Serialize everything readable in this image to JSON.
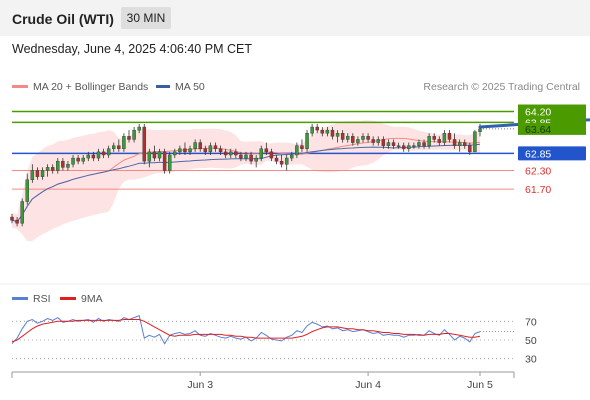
{
  "header": {
    "instrument": "Crude Oil (WTI)",
    "timeframe": "30 MIN",
    "datetime": "Wednesday, June 4, 2025 4:06:40 PM CET"
  },
  "legend": [
    {
      "label": "MA 20 + Bollinger Bands",
      "color": "#f28b82"
    },
    {
      "label": "MA 50",
      "color": "#3a5fa0"
    }
  ],
  "credit": "Research © 2025 Trading Central",
  "colors": {
    "up": "#3a9a3a",
    "down": "#b03030",
    "band_fill": "#fde0e0",
    "ma20": "#f28b82",
    "ma50": "#4a6aa8",
    "resistance": "#4a9a00",
    "pivot": "#2255cc",
    "support": "#f28b82",
    "arrow": "#3060b0",
    "rsi": "#5a7fd6",
    "rsi_ma": "#e02020"
  },
  "chart_data": [
    {
      "type": "candlestick",
      "title": "",
      "ylim": [
        58.9,
        64.7
      ],
      "x_labels": [
        {
          "label": "Jun 3",
          "index": 37
        },
        {
          "label": "Jun 4",
          "index": 70
        },
        {
          "label": "Jun 5",
          "index": 92
        }
      ],
      "levels": [
        {
          "label": "64.20",
          "value": 64.2,
          "kind": "resistance",
          "line": true
        },
        {
          "label": "63.85",
          "value": 63.85,
          "kind": "resistance",
          "line": true
        },
        {
          "label": "63.64",
          "value": 63.64,
          "kind": "current",
          "line": false
        },
        {
          "label": "62.85",
          "value": 62.85,
          "kind": "pivot",
          "line": true
        },
        {
          "label": "62.30",
          "value": 62.3,
          "kind": "support",
          "line": true
        },
        {
          "label": "61.70",
          "value": 61.7,
          "kind": "support",
          "line": true
        }
      ],
      "forecast_arrow": {
        "from_index": 92,
        "from_value": 63.7,
        "to_index": 100,
        "to_value": 64.15
      },
      "candles": [
        [
          60.8,
          60.9,
          60.6,
          60.7
        ],
        [
          60.7,
          60.8,
          60.5,
          60.6
        ],
        [
          60.6,
          61.4,
          60.5,
          61.3
        ],
        [
          61.3,
          62.2,
          61.2,
          62.0
        ],
        [
          62.0,
          62.5,
          61.9,
          62.3
        ],
        [
          62.3,
          62.4,
          62.0,
          62.1
        ],
        [
          62.1,
          62.4,
          62.0,
          62.3
        ],
        [
          62.3,
          62.5,
          62.1,
          62.4
        ],
        [
          62.4,
          62.5,
          62.2,
          62.3
        ],
        [
          62.3,
          62.7,
          62.2,
          62.6
        ],
        [
          62.6,
          62.7,
          62.3,
          62.4
        ],
        [
          62.4,
          62.6,
          62.3,
          62.5
        ],
        [
          62.5,
          62.8,
          62.4,
          62.7
        ],
        [
          62.7,
          62.8,
          62.5,
          62.6
        ],
        [
          62.6,
          62.8,
          62.5,
          62.7
        ],
        [
          62.7,
          62.9,
          62.6,
          62.8
        ],
        [
          62.8,
          62.9,
          62.6,
          62.7
        ],
        [
          62.7,
          63.0,
          62.6,
          62.9
        ],
        [
          62.9,
          63.0,
          62.7,
          62.8
        ],
        [
          62.8,
          63.1,
          62.7,
          63.0
        ],
        [
          63.0,
          63.2,
          62.9,
          63.1
        ],
        [
          63.1,
          63.3,
          62.9,
          63.0
        ],
        [
          63.0,
          63.5,
          62.9,
          63.4
        ],
        [
          63.4,
          63.6,
          63.2,
          63.3
        ],
        [
          63.3,
          63.7,
          63.2,
          63.6
        ],
        [
          63.6,
          63.8,
          63.5,
          63.7
        ],
        [
          63.7,
          63.8,
          62.5,
          62.6
        ],
        [
          62.6,
          63.0,
          62.4,
          62.9
        ],
        [
          62.9,
          63.1,
          62.6,
          62.7
        ],
        [
          62.7,
          63.0,
          62.6,
          62.9
        ],
        [
          62.9,
          63.0,
          62.2,
          62.3
        ],
        [
          62.3,
          62.9,
          62.2,
          62.8
        ],
        [
          62.8,
          63.0,
          62.7,
          62.9
        ],
        [
          62.9,
          63.1,
          62.8,
          63.0
        ],
        [
          63.0,
          63.2,
          62.8,
          62.9
        ],
        [
          62.9,
          63.1,
          62.8,
          63.0
        ],
        [
          63.0,
          63.3,
          62.9,
          63.2
        ],
        [
          63.2,
          63.3,
          62.9,
          63.0
        ],
        [
          63.0,
          63.1,
          62.8,
          62.9
        ],
        [
          62.9,
          63.2,
          62.8,
          63.1
        ],
        [
          63.1,
          63.2,
          62.9,
          63.0
        ],
        [
          63.0,
          63.1,
          62.8,
          62.9
        ],
        [
          62.9,
          63.0,
          62.7,
          62.8
        ],
        [
          62.8,
          63.0,
          62.7,
          62.9
        ],
        [
          62.9,
          63.0,
          62.7,
          62.8
        ],
        [
          62.8,
          62.9,
          62.6,
          62.7
        ],
        [
          62.7,
          62.9,
          62.6,
          62.8
        ],
        [
          62.8,
          62.9,
          62.5,
          62.6
        ],
        [
          62.6,
          62.8,
          62.4,
          62.7
        ],
        [
          62.7,
          63.1,
          62.6,
          63.0
        ],
        [
          63.0,
          63.2,
          62.8,
          62.9
        ],
        [
          62.9,
          63.0,
          62.6,
          62.7
        ],
        [
          62.7,
          62.8,
          62.5,
          62.6
        ],
        [
          62.6,
          62.8,
          62.4,
          62.5
        ],
        [
          62.5,
          62.8,
          62.3,
          62.7
        ],
        [
          62.7,
          62.9,
          62.6,
          62.8
        ],
        [
          62.8,
          63.2,
          62.7,
          63.1
        ],
        [
          63.1,
          63.3,
          62.9,
          63.0
        ],
        [
          63.0,
          63.6,
          62.9,
          63.5
        ],
        [
          63.5,
          63.8,
          63.4,
          63.7
        ],
        [
          63.7,
          63.8,
          63.5,
          63.6
        ],
        [
          63.6,
          63.7,
          63.4,
          63.5
        ],
        [
          63.5,
          63.7,
          63.4,
          63.6
        ],
        [
          63.6,
          63.7,
          63.3,
          63.4
        ],
        [
          63.4,
          63.6,
          63.2,
          63.5
        ],
        [
          63.5,
          63.6,
          63.2,
          63.3
        ],
        [
          63.3,
          63.5,
          63.2,
          63.4
        ],
        [
          63.4,
          63.5,
          63.1,
          63.2
        ],
        [
          63.2,
          63.4,
          63.1,
          63.3
        ],
        [
          63.3,
          63.5,
          63.2,
          63.4
        ],
        [
          63.4,
          63.5,
          63.2,
          63.3
        ],
        [
          63.3,
          63.4,
          63.1,
          63.2
        ],
        [
          63.2,
          63.4,
          63.1,
          63.3
        ],
        [
          63.3,
          63.4,
          63.0,
          63.1
        ],
        [
          63.1,
          63.3,
          63.0,
          63.2
        ],
        [
          63.2,
          63.3,
          63.0,
          63.1
        ],
        [
          63.1,
          63.2,
          63.0,
          63.1
        ],
        [
          63.1,
          63.2,
          62.9,
          63.0
        ],
        [
          63.0,
          63.2,
          62.9,
          63.1
        ],
        [
          63.1,
          63.2,
          63.0,
          63.1
        ],
        [
          63.1,
          63.3,
          63.0,
          63.2
        ],
        [
          63.2,
          63.3,
          63.0,
          63.1
        ],
        [
          63.1,
          63.5,
          63.0,
          63.4
        ],
        [
          63.4,
          63.5,
          63.2,
          63.3
        ],
        [
          63.3,
          63.4,
          63.1,
          63.2
        ],
        [
          63.2,
          63.6,
          63.1,
          63.5
        ],
        [
          63.5,
          63.6,
          63.2,
          63.3
        ],
        [
          63.3,
          63.5,
          63.0,
          63.1
        ],
        [
          63.1,
          63.3,
          62.9,
          63.2
        ],
        [
          63.2,
          63.3,
          63.0,
          63.1
        ],
        [
          63.1,
          63.2,
          62.8,
          62.9
        ],
        [
          62.9,
          63.6,
          62.9,
          63.55
        ],
        [
          63.55,
          63.8,
          63.4,
          63.64
        ]
      ]
    },
    {
      "type": "line",
      "title": "",
      "ylim": [
        20,
        80
      ],
      "levels": [
        {
          "label": "70",
          "value": 70
        },
        {
          "label": "50",
          "value": 50
        },
        {
          "label": "30",
          "value": 30
        }
      ],
      "series": [
        {
          "name": "RSI",
          "values": [
            46,
            52,
            62,
            70,
            72,
            68,
            70,
            73,
            71,
            74,
            69,
            70,
            72,
            70,
            71,
            72,
            69,
            73,
            70,
            72,
            71,
            70,
            74,
            72,
            74,
            76,
            52,
            55,
            53,
            56,
            46,
            55,
            57,
            58,
            56,
            57,
            60,
            55,
            54,
            57,
            55,
            53,
            52,
            54,
            52,
            51,
            53,
            49,
            52,
            58,
            55,
            51,
            50,
            49,
            53,
            55,
            60,
            58,
            65,
            69,
            67,
            64,
            65,
            62,
            63,
            60,
            61,
            59,
            60,
            61,
            59,
            57,
            58,
            55,
            56,
            55,
            55,
            53,
            55,
            55,
            56,
            55,
            60,
            57,
            55,
            61,
            56,
            50,
            54,
            52,
            48,
            57,
            59
          ]
        },
        {
          "name": "9MA",
          "values": [
            48,
            50,
            54,
            58,
            62,
            65,
            67,
            68,
            69,
            70,
            70,
            70,
            70,
            71,
            71,
            71,
            71,
            71,
            71,
            71,
            71,
            71,
            72,
            72,
            72,
            72,
            70,
            67,
            64,
            61,
            58,
            55,
            54,
            55,
            55,
            55,
            56,
            56,
            56,
            56,
            56,
            56,
            55,
            55,
            54,
            54,
            53,
            53,
            52,
            52,
            52,
            52,
            52,
            52,
            52,
            52,
            53,
            54,
            56,
            59,
            61,
            63,
            64,
            64,
            64,
            63,
            62,
            62,
            61,
            61,
            60,
            60,
            59,
            58,
            58,
            57,
            57,
            56,
            56,
            56,
            55,
            55,
            56,
            56,
            56,
            57,
            57,
            56,
            55,
            54,
            53,
            53,
            54
          ]
        }
      ]
    }
  ]
}
